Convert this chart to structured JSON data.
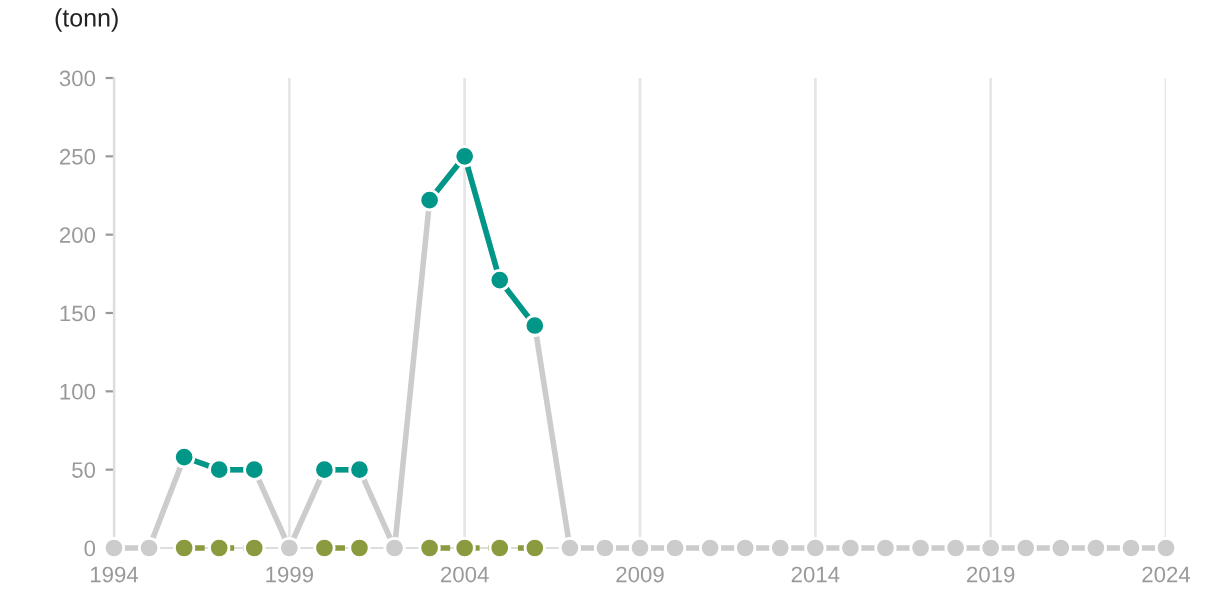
{
  "chart_data": {
    "type": "line",
    "ylabel": "(tonn)",
    "x": [
      1994,
      1995,
      1996,
      1997,
      1998,
      1999,
      2000,
      2001,
      2002,
      2003,
      2004,
      2005,
      2006,
      2007,
      2008,
      2009,
      2010,
      2011,
      2012,
      2013,
      2014,
      2015,
      2016,
      2017,
      2018,
      2019,
      2020,
      2021,
      2022,
      2023,
      2024
    ],
    "series": [
      {
        "color": "#cccccc",
        "line_style": "solid",
        "values": [
          0,
          0,
          58,
          50,
          50,
          0,
          50,
          50,
          0,
          222,
          250,
          171,
          142,
          0,
          0,
          0,
          0,
          0,
          0,
          0,
          0,
          0,
          0,
          0,
          0,
          0,
          0,
          0,
          0,
          0,
          0
        ]
      },
      {
        "color": "#009688",
        "line_style": "solid",
        "values": [
          null,
          null,
          58,
          50,
          50,
          null,
          50,
          50,
          null,
          222,
          250,
          171,
          142,
          null,
          null,
          null,
          null,
          null,
          null,
          null,
          null,
          null,
          null,
          null,
          null,
          null,
          null,
          null,
          null,
          null,
          null
        ]
      },
      {
        "color": "#8a9a3e",
        "line_style": "dashed",
        "values": [
          null,
          null,
          0,
          0,
          0,
          null,
          0,
          0,
          null,
          0,
          0,
          0,
          0,
          null,
          null,
          null,
          null,
          null,
          null,
          null,
          null,
          null,
          null,
          null,
          null,
          null,
          null,
          null,
          null,
          null,
          null
        ]
      }
    ],
    "marker": "circle",
    "xlim": [
      1994,
      2024
    ],
    "xticks": [
      1994,
      1999,
      2004,
      2009,
      2014,
      2019,
      2024
    ],
    "ylim": [
      0,
      300
    ],
    "yticks": [
      0,
      50,
      100,
      150,
      200,
      250,
      300
    ],
    "grid": "x",
    "legend": false
  }
}
